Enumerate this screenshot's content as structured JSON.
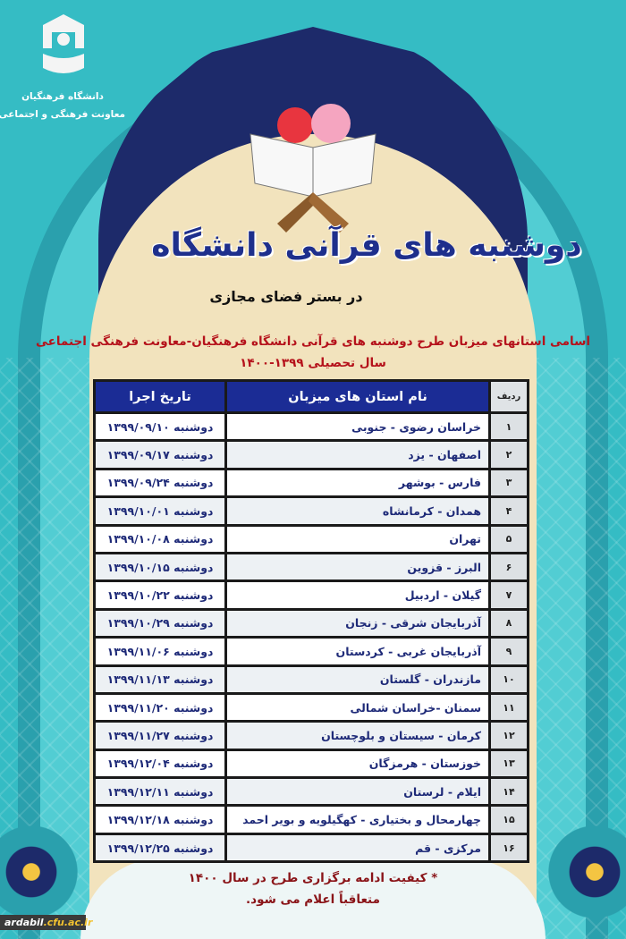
{
  "logo": {
    "line1": "دانشگاه فرهنگیان",
    "line2": "معاونت فرهنگی و اجتماعی"
  },
  "title": "دوشنبه های قرآنی دانشگاه",
  "subtitle": "در بستر فضای مجازی",
  "heading": {
    "line1": "اسامی استانهای میزبان طرح دوشنبه های قرآنی دانشگاه فرهنگیان-معاونت فرهنگی اجتماعی",
    "line2": "سال تحصیلی ۱۳۹۹-۱۴۰۰"
  },
  "table": {
    "headers": {
      "row": "ردیف",
      "name": "نام استان های میزبان",
      "date": "تاریخ اجرا"
    },
    "rows": [
      {
        "n": "۱",
        "name": "خراسان رضوی - جنوبی",
        "date": "دوشنبه ۱۳۹۹/۰۹/۱۰"
      },
      {
        "n": "۲",
        "name": "اصفهان - یزد",
        "date": "دوشنبه ۱۳۹۹/۰۹/۱۷"
      },
      {
        "n": "۳",
        "name": "فارس - بوشهر",
        "date": "دوشنبه ۱۳۹۹/۰۹/۲۴"
      },
      {
        "n": "۴",
        "name": "همدان - کرمانشاه",
        "date": "دوشنبه ۱۳۹۹/۱۰/۰۱"
      },
      {
        "n": "۵",
        "name": "تهران",
        "date": "دوشنبه ۱۳۹۹/۱۰/۰۸"
      },
      {
        "n": "۶",
        "name": "البرز - قزوین",
        "date": "دوشنبه ۱۳۹۹/۱۰/۱۵"
      },
      {
        "n": "۷",
        "name": "گیلان - اردبیل",
        "date": "دوشنبه ۱۳۹۹/۱۰/۲۲"
      },
      {
        "n": "۸",
        "name": "آذربایجان شرقی - زنجان",
        "date": "دوشنبه ۱۳۹۹/۱۰/۲۹"
      },
      {
        "n": "۹",
        "name": "آذربایجان غربی - کردستان",
        "date": "دوشنبه ۱۳۹۹/۱۱/۰۶"
      },
      {
        "n": "۱۰",
        "name": "مازندران - گلستان",
        "date": "دوشنبه ۱۳۹۹/۱۱/۱۳"
      },
      {
        "n": "۱۱",
        "name": "سمنان -خراسان شمالی",
        "date": "دوشنبه ۱۳۹۹/۱۱/۲۰"
      },
      {
        "n": "۱۲",
        "name": "کرمان - سیستان و بلوچستان",
        "date": "دوشنبه ۱۳۹۹/۱۱/۲۷"
      },
      {
        "n": "۱۳",
        "name": "خوزستان - هرمزگان",
        "date": "دوشنبه ۱۳۹۹/۱۲/۰۴"
      },
      {
        "n": "۱۴",
        "name": "ایلام - لرستان",
        "date": "دوشنبه ۱۳۹۹/۱۲/۱۱"
      },
      {
        "n": "۱۵",
        "name": "چهارمحال و بختیاری - کهگیلویه و بویر احمد",
        "date": "دوشنبه ۱۳۹۹/۱۲/۱۸"
      },
      {
        "n": "۱۶",
        "name": "مرکزی - قم",
        "date": "دوشنبه ۱۳۹۹/۱۲/۲۵"
      }
    ]
  },
  "footer": {
    "line1": "* کیفیت ادامه برگزاری طرح در سال ۱۴۰۰",
    "line2": "متعاقباً اعلام می شود."
  },
  "watermark": {
    "name": "ardabil",
    "domain": ".cfu.ac.ir"
  },
  "colors": {
    "background": "#35bcc4",
    "header": "#1b2c95",
    "title": "#1e2f8c",
    "red_text": "#b5121b"
  }
}
